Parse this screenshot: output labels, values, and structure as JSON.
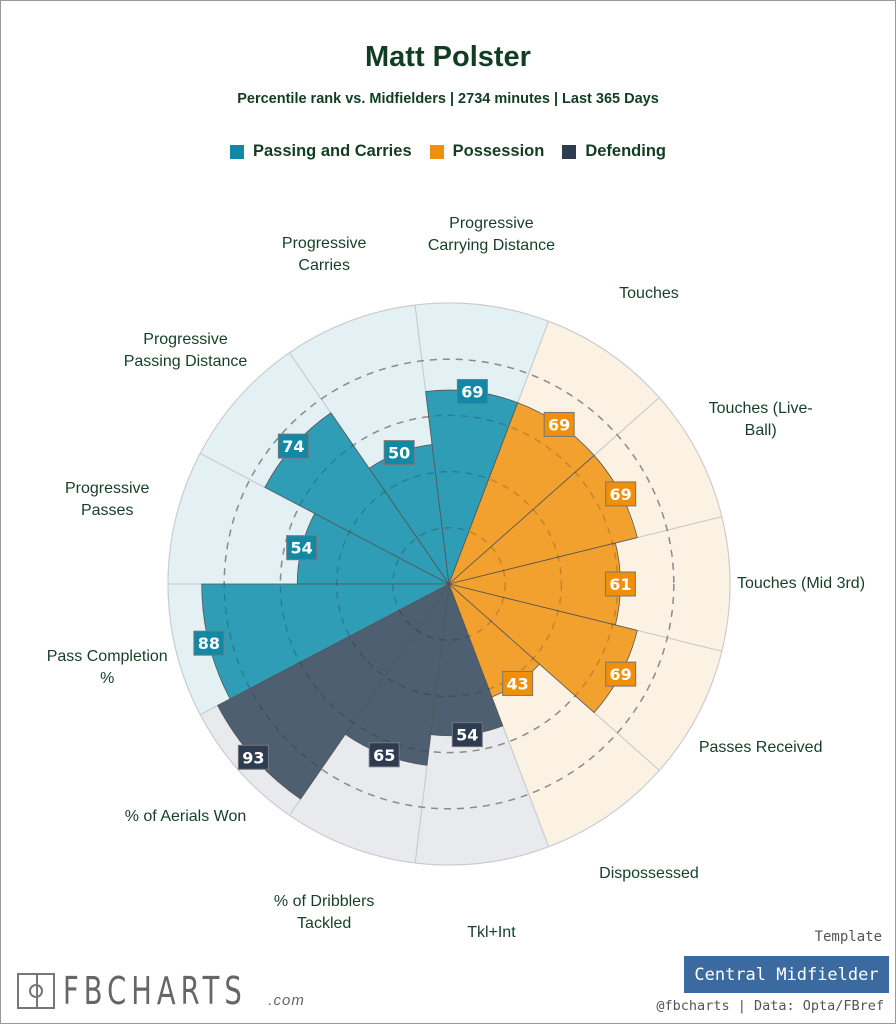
{
  "header": {
    "title": "Matt Polster",
    "subtitle": "Percentile rank vs. Midfielders | 2734 minutes | Last 365 Days"
  },
  "legend": [
    {
      "label": "Passing and Carries",
      "color": "#1189a5"
    },
    {
      "label": "Possession",
      "color": "#ef8f0a"
    },
    {
      "label": "Defending",
      "color": "#2e3c52"
    }
  ],
  "chart_data": {
    "type": "polar-bar",
    "title": "Matt Polster",
    "rlim": [
      0,
      100
    ],
    "gridlines": [
      20,
      40,
      60,
      80
    ],
    "categories": [
      "Progressive Passes",
      "Progressive Passing Distance",
      "Progressive Carries",
      "Progressive Carrying Distance",
      "Touches",
      "Touches (Live-Ball)",
      "Touches (Mid 3rd)",
      "Passes Received",
      "Dispossessed",
      "Tkl+Int",
      "% of Dribblers Tackled",
      "% of Aerials Won",
      "Pass Completion %"
    ],
    "values": [
      54,
      74,
      50,
      69,
      69,
      69,
      61,
      69,
      43,
      54,
      65,
      93,
      88
    ],
    "groups": [
      0,
      0,
      0,
      0,
      1,
      1,
      1,
      1,
      1,
      2,
      2,
      2,
      0
    ],
    "group_colors": {
      "bar": [
        "#2f9db5",
        "#f2a12f",
        "#4f5f72"
      ],
      "label": [
        "#1189a5",
        "#ef8f0a",
        "#2e3c52"
      ],
      "background": [
        "#e3f0f4",
        "#fcf2e4",
        "#e8eaee"
      ]
    }
  },
  "footer": {
    "template_label": "Template",
    "template_value": "Central Midfielder",
    "credit": "@fbcharts | Data: Opta/FBref",
    "logo_text": "FBCHARTS",
    "logo_suffix": ".com"
  }
}
